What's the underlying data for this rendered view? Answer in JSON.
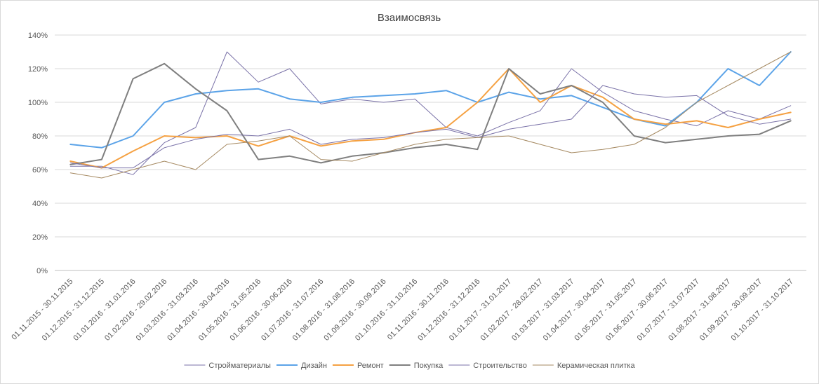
{
  "chart_data": {
    "type": "line",
    "title": "Взаимосвязь",
    "xlabel": "",
    "ylabel": "",
    "ylim": [
      0,
      140
    ],
    "yticks": [
      0,
      20,
      40,
      60,
      80,
      100,
      120,
      140
    ],
    "ytick_labels": [
      "0%",
      "20%",
      "40%",
      "60%",
      "80%",
      "100%",
      "120%",
      "140%"
    ],
    "grid": "horizontal",
    "legend": "bottom",
    "categories": [
      "01.11.2015 - 30.11.2015",
      "01.12.2015 - 31.12.2015",
      "01.01.2016 - 31.01.2016",
      "01.02.2016 - 29.02.2016",
      "01.03.2016 - 31.03.2016",
      "01.04.2016 - 30.04.2016",
      "01.05.2016 - 31.05.2016",
      "01.06.2016 - 30.06.2016",
      "01.07.2016 - 31.07.2016",
      "01.08.2016 - 31.08.2016",
      "01.09.2016 - 30.09.2016",
      "01.10.2016 - 31.10.2016",
      "01.11.2016 - 30.11.2016",
      "01.12.2016 - 31.12.2016",
      "01.01.2017 - 31.01.2017",
      "01.02.2017 - 28.02.2017",
      "01.03.2017 - 31.03.2017",
      "01.04.2017 - 30.04.2017",
      "01.05.2017 - 31.05.2017",
      "01.06.2017 - 30.06.2017",
      "01.07.2017 - 31.07.2017",
      "01.08.2017 - 31.08.2017",
      "01.09.2017 - 30.09.2017",
      "01.10.2017 - 31.10.2017"
    ],
    "series": [
      {
        "name": "Стройматериалы",
        "color": "#7a72a8",
        "width": 1,
        "values": [
          62,
          62,
          57,
          76,
          85,
          130,
          112,
          120,
          99,
          102,
          100,
          102,
          85,
          80,
          88,
          95,
          120,
          106,
          95,
          90,
          86,
          95,
          90,
          98
        ]
      },
      {
        "name": "Дизайн",
        "color": "#5ba3e8",
        "width": 2,
        "values": [
          75,
          73,
          80,
          100,
          105,
          107,
          108,
          102,
          100,
          103,
          104,
          105,
          107,
          100,
          106,
          102,
          104,
          97,
          90,
          86,
          100,
          120,
          110,
          130
        ]
      },
      {
        "name": "Ремонт",
        "color": "#f5a142",
        "width": 2,
        "values": [
          65,
          61,
          71,
          80,
          79,
          80,
          74,
          80,
          74,
          77,
          78,
          82,
          85,
          100,
          120,
          100,
          110,
          103,
          90,
          87,
          89,
          85,
          90,
          94
        ]
      },
      {
        "name": "Покупка",
        "color": "#7f7f7f",
        "width": 2,
        "values": [
          63,
          66,
          114,
          123,
          108,
          95,
          66,
          68,
          64,
          68,
          70,
          73,
          75,
          72,
          120,
          105,
          110,
          100,
          80,
          76,
          78,
          80,
          81,
          89
        ]
      },
      {
        "name": "Строительство",
        "color": "#7a72a8",
        "width": 1,
        "values": [
          64,
          61,
          61,
          73,
          78,
          81,
          80,
          84,
          75,
          78,
          79,
          82,
          84,
          79,
          84,
          87,
          90,
          110,
          105,
          103,
          104,
          92,
          87,
          90
        ]
      },
      {
        "name": "Керамическая плитка",
        "color": "#a68a62",
        "width": 1,
        "values": [
          58,
          55,
          60,
          65,
          60,
          75,
          77,
          80,
          66,
          65,
          70,
          75,
          78,
          79,
          80,
          75,
          70,
          72,
          75,
          85,
          100,
          110,
          120,
          130
        ]
      }
    ]
  }
}
